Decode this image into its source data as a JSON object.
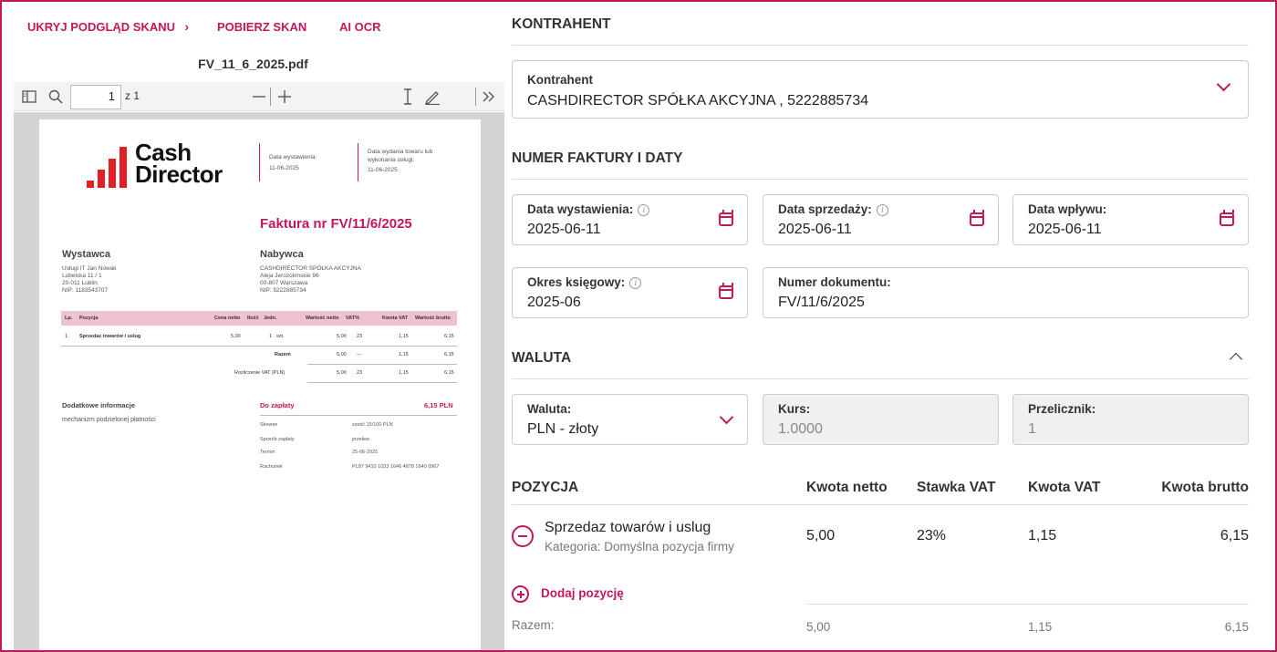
{
  "scan": {
    "hide_preview": "UKRYJ PODGLĄD SKANU",
    "download": "POBIERZ SKAN",
    "ai_ocr": "AI OCR",
    "file_name": "FV_11_6_2025.pdf"
  },
  "pdf_toolbar": {
    "page": "1",
    "page_total": "z 1"
  },
  "invoice": {
    "logo_line1": "Cash",
    "logo_line2": "Director",
    "issue_label": "Data wystawienia:",
    "issue_date": "11-06-2025",
    "delivery_label1": "Data wydania towaru lub",
    "delivery_label2": "wykonania usługi:",
    "delivery_date": "11-06-2025",
    "title": "Faktura nr FV/11/6/2025",
    "seller_title": "Wystawca",
    "seller_lines": [
      "Usługi IT Jan Nowak",
      "Lubelska 11 / 1",
      "20-011 Lublin",
      "NIP: 1183543707"
    ],
    "buyer_title": "Nabywca",
    "buyer_lines": [
      "CASHDIRECTOR SPÓŁKA AKCYJNA",
      "Aleja Jerozolimskie 96",
      "00-807 Warszawa",
      "NIP: 5222885734"
    ],
    "table_headers": [
      "Lp.",
      "Pozycja",
      "Cena netto",
      "Ilość",
      "Jedn.",
      "Wartość netto",
      "VAT%",
      "Kwota VAT",
      "Wartość brutto"
    ],
    "row": [
      "1.",
      "Sprzedaz towarów i uslug",
      "5,00",
      "1",
      "szt.",
      "5,00",
      "23",
      "1,15",
      "6,15"
    ],
    "total_label": "Razem",
    "total_row": [
      "5,00",
      "---",
      "1,15",
      "6,15"
    ],
    "vat_label": "Rozliczenie VAT (PLN)",
    "vat_row": [
      "5,00",
      "23",
      "1,15",
      "6,15"
    ],
    "extra_title": "Dodatkowe informacje",
    "extra_text": "mechanizm podzielonej płatności",
    "to_pay_label": "Do zapłaty",
    "to_pay_value": "6,15 PLN",
    "words_label": "Słownie",
    "words_value": "sześć 15/100 PLN",
    "method_label": "Sposób zapłaty",
    "method_value": "przelew",
    "due_label": "Termin",
    "due_value": "25-06-2025",
    "account_label": "Rachunek",
    "account_value": "PL87 9410 1033 1646 4878 1640 0967"
  },
  "form": {
    "contractor_section": "KONTRAHENT",
    "contractor_label": "Kontrahent",
    "contractor_value": "CASHDIRECTOR SPÓŁKA AKCYJNA , 5222885734",
    "dates_section": "NUMER FAKTURY I DATY",
    "issue_label": "Data wystawienia:",
    "issue_value": "2025-06-11",
    "sale_label": "Data sprzedaży:",
    "sale_value": "2025-06-11",
    "receipt_label": "Data wpływu:",
    "receipt_value": "2025-06-11",
    "period_label": "Okres księgowy:",
    "period_value": "2025-06",
    "docnum_label": "Numer dokumentu:",
    "docnum_value": "FV/11/6/2025",
    "currency_section": "WALUTA",
    "currency_label": "Waluta:",
    "currency_value": "PLN - złoty",
    "rate_label": "Kurs:",
    "rate_value": "1.0000",
    "converter_label": "Przelicznik:",
    "converter_value": "1"
  },
  "positions": {
    "section": "POZYCJA",
    "col_net": "Kwota netto",
    "col_vat_rate": "Stawka VAT",
    "col_vat": "Kwota VAT",
    "col_gross": "Kwota brutto",
    "item_name": "Sprzedaz towarów i uslug",
    "item_category": "Kategoria: Domyślna pozycja firmy",
    "item_net": "5,00",
    "item_vat_rate": "23%",
    "item_vat": "1,15",
    "item_gross": "6,15",
    "add_label": "Dodaj pozycję",
    "sum_label": "Razem:",
    "sum_net": "5,00",
    "sum_vat": "1,15",
    "sum_gross": "6,15"
  },
  "colors": {
    "accent": "#c2185b",
    "logo_red": "#e31e24"
  }
}
